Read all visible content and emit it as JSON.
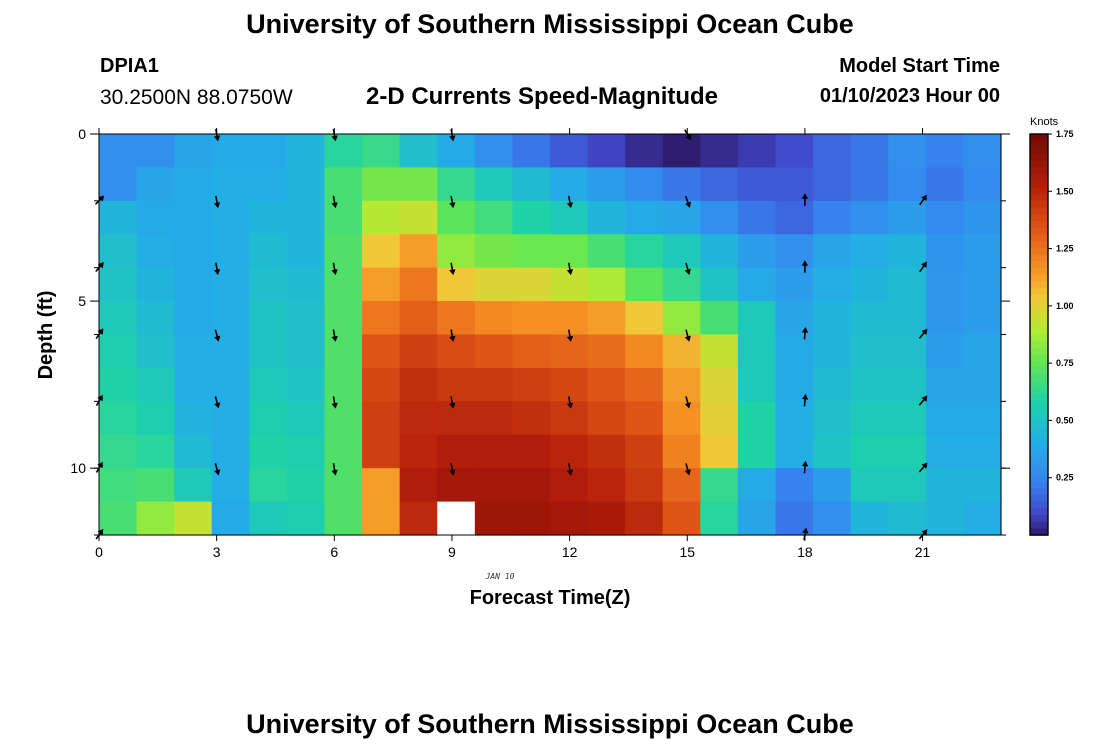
{
  "header": {
    "title": "University of Southern Mississippi Ocean Cube",
    "station": "DPIA1",
    "coords": "30.2500N  88.0750W",
    "plot_title": "2-D Currents Speed-Magnitude",
    "model_start_label": "Model Start Time",
    "model_start_value": "01/10/2023 Hour 00"
  },
  "footer": {
    "title": "University of Southern Mississippi Ocean Cube"
  },
  "chart_data": {
    "type": "heatmap",
    "title": "2-D Currents Speed-Magnitude",
    "xlabel": "Forecast Time(Z)",
    "ylabel": "Depth (ft)",
    "date_label": "JAN 10",
    "xlim": [
      0,
      23
    ],
    "ylim": [
      12,
      0
    ],
    "x_ticks": [
      0,
      3,
      6,
      9,
      12,
      15,
      18,
      21
    ],
    "y_ticks": [
      0,
      5,
      10
    ],
    "y_minor_ticks": [
      0,
      2,
      4,
      6,
      8,
      10,
      12
    ],
    "colorbar": {
      "label": "Knots",
      "min": 0,
      "max": 1.75,
      "ticks": [
        0.25,
        0.5,
        0.75,
        1.0,
        1.25,
        1.5,
        1.75
      ],
      "tick_labels": [
        "0.25",
        "0.50",
        "0.75",
        "1.00",
        "1.25",
        "1.50",
        "1.75"
      ]
    },
    "hours": [
      0,
      1,
      2,
      3,
      4,
      5,
      6,
      7,
      8,
      9,
      10,
      11,
      12,
      13,
      14,
      15,
      16,
      17,
      18,
      19,
      20,
      21,
      22,
      23
    ],
    "depths_ft": [
      0,
      1,
      2,
      3,
      4,
      5,
      6,
      7,
      8,
      9,
      10,
      11
    ],
    "speed_knots": [
      [
        0.3,
        0.3,
        0.38,
        0.4,
        0.4,
        0.45,
        0.62,
        0.66,
        0.5,
        0.4,
        0.3,
        0.22,
        0.15,
        0.1,
        0.05,
        0.02,
        0.05,
        0.08,
        0.12,
        0.18,
        0.22,
        0.3,
        0.25,
        0.3
      ],
      [
        0.3,
        0.38,
        0.4,
        0.42,
        0.42,
        0.45,
        0.7,
        0.8,
        0.8,
        0.65,
        0.55,
        0.48,
        0.4,
        0.35,
        0.28,
        0.22,
        0.18,
        0.15,
        0.15,
        0.18,
        0.22,
        0.28,
        0.22,
        0.28
      ],
      [
        0.45,
        0.4,
        0.4,
        0.42,
        0.45,
        0.45,
        0.7,
        0.92,
        0.95,
        0.75,
        0.68,
        0.6,
        0.55,
        0.45,
        0.4,
        0.38,
        0.3,
        0.22,
        0.18,
        0.25,
        0.3,
        0.35,
        0.28,
        0.32
      ],
      [
        0.5,
        0.42,
        0.4,
        0.42,
        0.48,
        0.45,
        0.72,
        1.05,
        1.15,
        0.85,
        0.8,
        0.78,
        0.78,
        0.7,
        0.62,
        0.55,
        0.45,
        0.35,
        0.3,
        0.38,
        0.42,
        0.45,
        0.32,
        0.35
      ],
      [
        0.52,
        0.45,
        0.4,
        0.42,
        0.5,
        0.48,
        0.72,
        1.15,
        1.25,
        1.05,
        1.0,
        1.0,
        0.95,
        0.9,
        0.75,
        0.65,
        0.52,
        0.4,
        0.35,
        0.42,
        0.45,
        0.48,
        0.33,
        0.35
      ],
      [
        0.55,
        0.48,
        0.4,
        0.42,
        0.52,
        0.5,
        0.72,
        1.25,
        1.32,
        1.25,
        1.2,
        1.18,
        1.18,
        1.15,
        1.05,
        0.85,
        0.7,
        0.55,
        0.38,
        0.45,
        0.48,
        0.48,
        0.33,
        0.35
      ],
      [
        0.58,
        0.5,
        0.42,
        0.42,
        0.52,
        0.5,
        0.72,
        1.35,
        1.42,
        1.38,
        1.35,
        1.32,
        1.3,
        1.28,
        1.2,
        1.1,
        0.95,
        0.55,
        0.4,
        0.45,
        0.5,
        0.5,
        0.35,
        0.38
      ],
      [
        0.6,
        0.55,
        0.42,
        0.42,
        0.55,
        0.52,
        0.72,
        1.4,
        1.48,
        1.45,
        1.45,
        1.42,
        1.4,
        1.35,
        1.3,
        1.15,
        1.0,
        0.55,
        0.4,
        0.48,
        0.52,
        0.52,
        0.38,
        0.38
      ],
      [
        0.62,
        0.58,
        0.44,
        0.42,
        0.58,
        0.55,
        0.72,
        1.42,
        1.5,
        1.5,
        1.5,
        1.48,
        1.45,
        1.4,
        1.35,
        1.18,
        1.02,
        0.6,
        0.42,
        0.5,
        0.55,
        0.55,
        0.4,
        0.4
      ],
      [
        0.65,
        0.62,
        0.47,
        0.42,
        0.6,
        0.58,
        0.72,
        1.42,
        1.52,
        1.55,
        1.55,
        1.55,
        1.52,
        1.48,
        1.42,
        1.22,
        1.05,
        0.6,
        0.42,
        0.52,
        0.58,
        0.58,
        0.42,
        0.42
      ],
      [
        0.68,
        0.7,
        0.55,
        0.42,
        0.62,
        0.6,
        0.72,
        1.15,
        1.55,
        1.6,
        1.6,
        1.6,
        1.55,
        1.52,
        1.45,
        1.3,
        0.65,
        0.4,
        0.25,
        0.35,
        0.55,
        0.55,
        0.45,
        0.45
      ],
      [
        0.7,
        0.85,
        0.95,
        0.4,
        0.55,
        0.58,
        0.72,
        1.15,
        1.5,
        null,
        1.62,
        1.62,
        1.6,
        1.58,
        1.5,
        1.35,
        0.62,
        0.38,
        0.22,
        0.3,
        0.45,
        0.48,
        0.45,
        0.42
      ]
    ],
    "vector_hours": [
      0,
      3,
      6,
      9,
      12,
      15,
      18,
      21
    ],
    "vector_depths_ft": [
      0,
      2,
      4,
      6,
      8,
      10,
      12
    ],
    "vector_directions_deg": [
      [
        null,
        170,
        170,
        170,
        null,
        150,
        null,
        null
      ],
      [
        45,
        170,
        170,
        170,
        170,
        160,
        0,
        35
      ],
      [
        40,
        170,
        170,
        170,
        170,
        165,
        0,
        35
      ],
      [
        35,
        165,
        170,
        170,
        170,
        165,
        5,
        40
      ],
      [
        30,
        165,
        170,
        170,
        170,
        165,
        5,
        40
      ],
      [
        30,
        165,
        170,
        170,
        170,
        165,
        5,
        40
      ],
      [
        35,
        null,
        null,
        null,
        null,
        null,
        10,
        40
      ]
    ]
  }
}
